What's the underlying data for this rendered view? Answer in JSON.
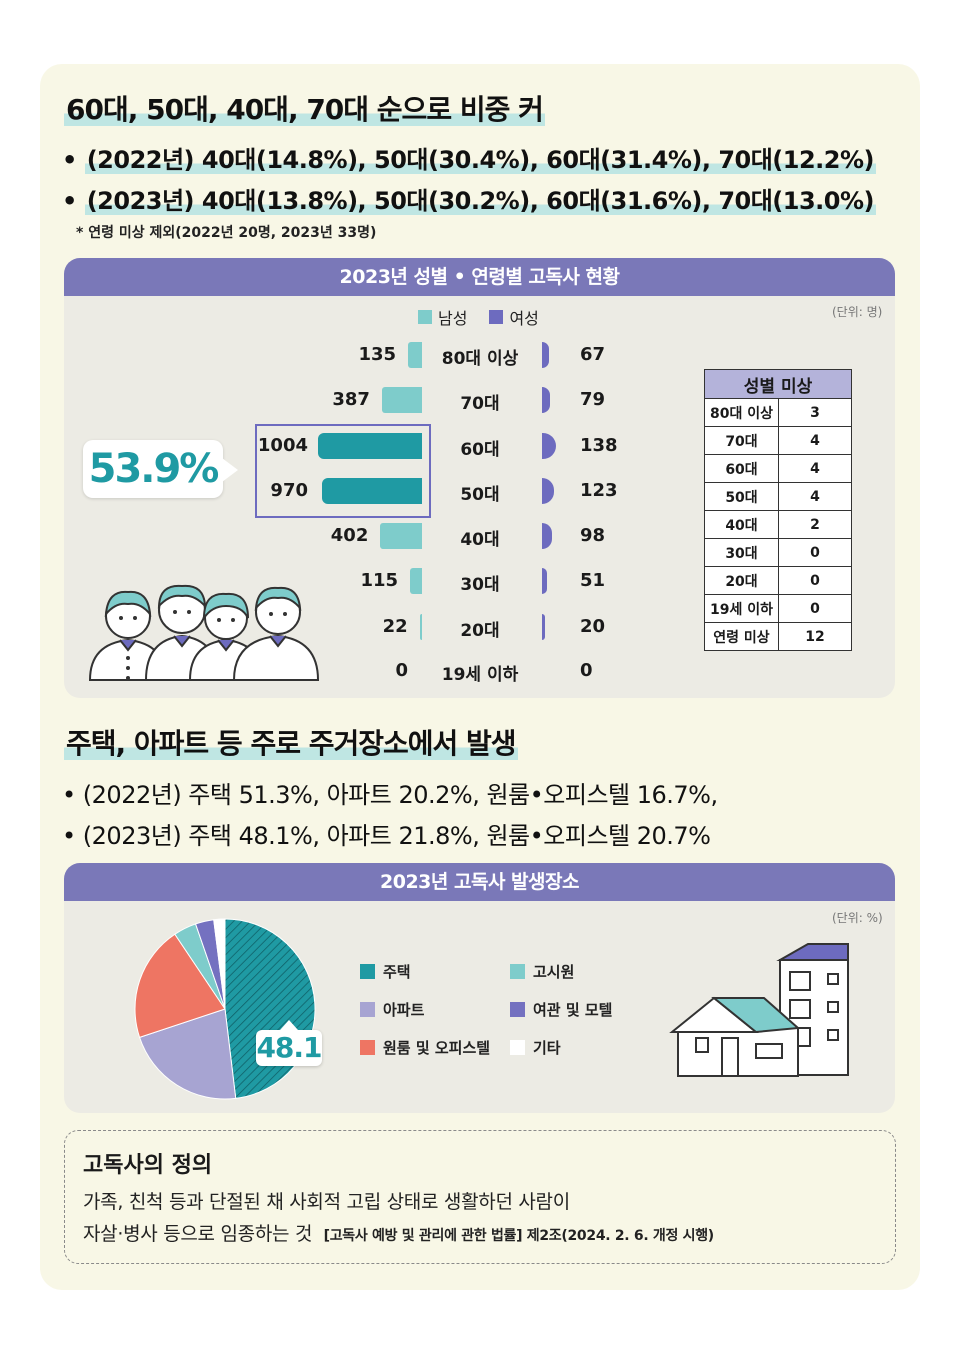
{
  "section1": {
    "heading": "60대, 50대, 40대, 70대 순으로 비중 커",
    "bullets": [
      "(2022년) 40대(14.8%), 50대(30.4%), 60대(31.4%), 70대(12.2%)",
      "(2023년) 40대(13.8%), 50대(30.2%), 60대(31.6%), 70대(13.0%)"
    ],
    "note": "* 연령 미상 제외(2022년 20명, 2023년 33명)"
  },
  "chart1": {
    "title": "2023년 성별 • 연령별 고독사 현황",
    "unit": "(단위: 명)",
    "legend_male": "남성",
    "legend_female": "여성",
    "callout": "53.9%"
  },
  "unknown_table": {
    "title": "성별 미상",
    "rows": [
      {
        "label": "80대 이상",
        "value": "3"
      },
      {
        "label": "70대",
        "value": "4"
      },
      {
        "label": "60대",
        "value": "4"
      },
      {
        "label": "50대",
        "value": "4"
      },
      {
        "label": "40대",
        "value": "2"
      },
      {
        "label": "30대",
        "value": "0"
      },
      {
        "label": "20대",
        "value": "0"
      },
      {
        "label": "19세 이하",
        "value": "0"
      },
      {
        "label": "연령 미상",
        "value": "12"
      }
    ]
  },
  "section2": {
    "heading": "주택, 아파트 등 주로 주거장소에서 발생",
    "bullets": [
      "(2022년) 주택 51.3%, 아파트 20.2%, 원룸•오피스텔 16.7%,",
      "(2023년) 주택 48.1%, 아파트 21.8%, 원룸•오피스텔 20.7%"
    ]
  },
  "chart2": {
    "title": "2023년 고독사 발생장소",
    "unit": "(단위: %)",
    "callout": "48.1",
    "legend": [
      {
        "label": "주택"
      },
      {
        "label": "고시원"
      },
      {
        "label": "아파트"
      },
      {
        "label": "여관 및 모텔"
      },
      {
        "label": "원룸 및 오피스텔"
      },
      {
        "label": "기타"
      }
    ]
  },
  "definition": {
    "title": "고독사의 정의",
    "line1": "가족, 친척 등과 단절된 채 사회적 고립 상태로 생활하던 사람이",
    "line2": "자살·병사 등으로 임종하는 것",
    "source": "[고독사 예방 및 관리에 관한 법률] 제2조(2024. 2. 6. 개정 시행)"
  },
  "colors": {
    "male": "#7ecccb",
    "male_highlight": "#1f9aa3",
    "female": "#6d6bbf",
    "pie_house": "#1f9aa3",
    "pie_goshiwon": "#7ecccb",
    "pie_apt": "#a7a4d2",
    "pie_motel": "#7471c0",
    "pie_oneroom": "#ee7563",
    "pie_etc": "#ffffff"
  },
  "chart_data": [
    {
      "type": "bar",
      "title": "2023년 성별 • 연령별 고독사 현황",
      "categories": [
        "80대 이상",
        "70대",
        "60대",
        "50대",
        "40대",
        "30대",
        "20대",
        "19세 이하"
      ],
      "series": [
        {
          "name": "남성",
          "values": [
            135,
            387,
            1004,
            970,
            402,
            115,
            22,
            0
          ]
        },
        {
          "name": "여성",
          "values": [
            67,
            79,
            138,
            123,
            98,
            51,
            20,
            0
          ]
        }
      ]
    },
    {
      "type": "pie",
      "title": "2023년 고독사 발생장소",
      "slices": [
        {
          "label": "주택",
          "value": 48.1,
          "color": "#1f9aa3"
        },
        {
          "label": "아파트",
          "value": 21.8,
          "color": "#a7a4d2"
        },
        {
          "label": "원룸 및 오피스텔",
          "value": 20.7,
          "color": "#ee7563"
        },
        {
          "label": "고시원",
          "value": 4.1,
          "color": "#7ecccb"
        },
        {
          "label": "여관 및 모텔",
          "value": 3.3,
          "color": "#7471c0"
        },
        {
          "label": "기타",
          "value": 2.0,
          "color": "#ffffff"
        }
      ]
    }
  ]
}
